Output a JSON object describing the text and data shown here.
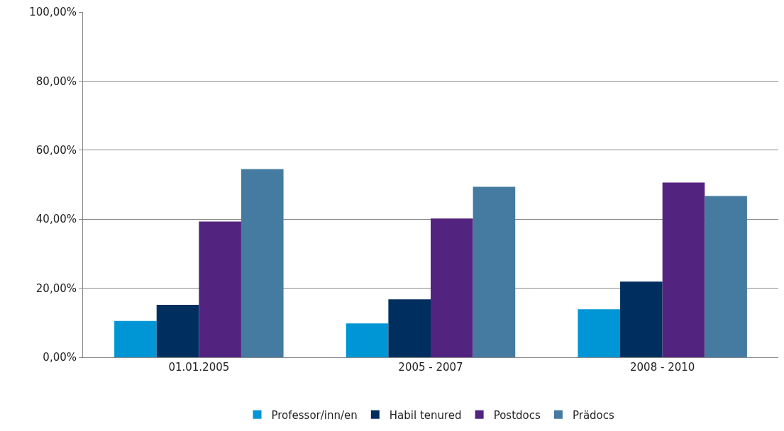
{
  "chart_data": {
    "type": "bar",
    "categories": [
      "01.01.2005",
      "2005 - 2007",
      "2008 - 2010"
    ],
    "series": [
      {
        "name": "Professor/inn/en",
        "color": "#0096d6",
        "values": [
          10.5,
          9.8,
          13.9
        ]
      },
      {
        "name": "Habil tenured",
        "color": "#002f5f",
        "values": [
          15.2,
          16.8,
          21.9
        ]
      },
      {
        "name": "Postdocs",
        "color": "#53247f",
        "values": [
          39.3,
          40.2,
          50.6
        ]
      },
      {
        "name": "Prädocs",
        "color": "#457ba1",
        "values": [
          54.5,
          49.4,
          46.7
        ]
      }
    ],
    "ylim": [
      0,
      100
    ],
    "yticks": [
      {
        "value": 0,
        "label": "0,00%"
      },
      {
        "value": 20,
        "label": "20,00%"
      },
      {
        "value": 40,
        "label": "40,00%"
      },
      {
        "value": 60,
        "label": "60,00%"
      },
      {
        "value": 80,
        "label": "80,00%"
      },
      {
        "value": 100,
        "label": "100,00%"
      }
    ],
    "grid": "y",
    "legend": "bottom"
  }
}
